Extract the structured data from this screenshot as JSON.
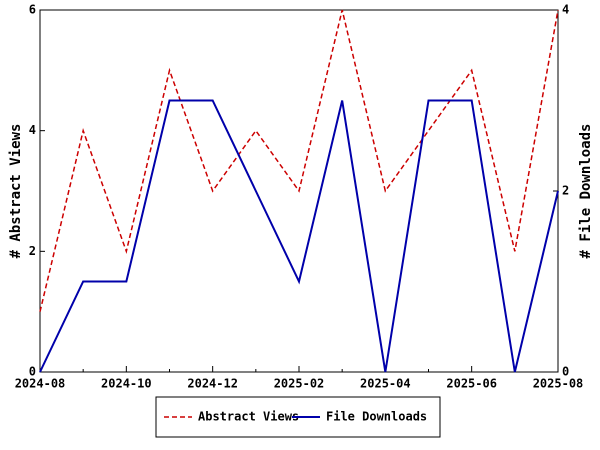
{
  "chart_data": {
    "type": "line",
    "categories": [
      "2024-08",
      null,
      "2024-10",
      null,
      "2024-12",
      null,
      "2025-02",
      null,
      "2025-04",
      null,
      "2025-06",
      null,
      "2025-08"
    ],
    "ylabel": "# Abstract Views",
    "y2label": "# File Downloads",
    "ylim": [
      0,
      6
    ],
    "yticks": [
      0,
      2,
      4,
      6
    ],
    "y2lim": [
      0,
      4
    ],
    "y2ticks": [
      0,
      2,
      4
    ],
    "legend": "bottom",
    "series": [
      {
        "name": "Abstract Views",
        "color": "#cc0000",
        "dash": true,
        "values": [
          1,
          4,
          2,
          5,
          3,
          4,
          3,
          6,
          3,
          4,
          5,
          2,
          6
        ]
      },
      {
        "name": "File Downloads",
        "color": "#0000aa",
        "axis": "y2",
        "values": [
          0,
          1,
          1,
          3,
          3,
          2,
          1,
          3,
          0,
          3,
          3,
          0,
          2
        ]
      }
    ]
  }
}
